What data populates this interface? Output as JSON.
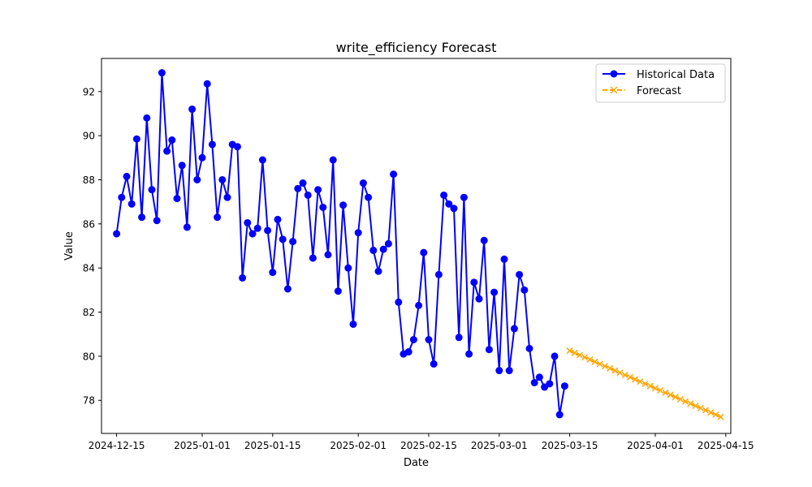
{
  "chart_data": {
    "type": "line",
    "title": "write_efficiency Forecast",
    "xlabel": "Date",
    "ylabel": "Value",
    "xlim": [
      "2024-12-12",
      "2025-04-16"
    ],
    "ylim": [
      76.5,
      93.5
    ],
    "x_ticks": [
      "2024-12-15",
      "2025-01-01",
      "2025-01-15",
      "2025-02-01",
      "2025-02-15",
      "2025-03-01",
      "2025-03-15",
      "2025-04-01",
      "2025-04-15"
    ],
    "y_ticks": [
      78,
      80,
      82,
      84,
      86,
      88,
      90,
      92
    ],
    "legend_position": "top-right",
    "grid": false,
    "series": [
      {
        "name": "Historical Data",
        "color": "#0000ff",
        "style": "solid",
        "marker": "circle",
        "start_date": "2024-12-15",
        "step_days": 1,
        "values": [
          85.55,
          87.2,
          88.15,
          86.9,
          89.85,
          86.3,
          90.8,
          87.55,
          86.15,
          92.85,
          89.3,
          89.8,
          87.15,
          88.65,
          85.85,
          91.2,
          88.0,
          89.0,
          92.35,
          89.6,
          86.3,
          88.0,
          87.2,
          89.6,
          89.5,
          83.55,
          86.05,
          85.55,
          85.8,
          88.9,
          85.7,
          83.8,
          86.2,
          85.3,
          83.05,
          85.2,
          87.6,
          87.85,
          87.3,
          84.45,
          87.55,
          86.75,
          84.6,
          88.9,
          82.95,
          86.85,
          84.0,
          81.45,
          85.6,
          87.85,
          87.2,
          84.8,
          83.85,
          84.85,
          85.1,
          88.25,
          82.45,
          80.1,
          80.2,
          80.75,
          82.3,
          84.7,
          80.75,
          79.65,
          83.7,
          87.3,
          86.9,
          86.7,
          80.85,
          87.2,
          80.1,
          83.35,
          82.6,
          85.25,
          80.3,
          82.9,
          79.35,
          84.4,
          79.35,
          81.25,
          83.7,
          83.0,
          80.35,
          78.8,
          79.05,
          78.6,
          78.75,
          80.0,
          77.35,
          78.65
        ]
      },
      {
        "name": "Forecast",
        "color": "#ffa500",
        "style": "dashed",
        "marker": "x",
        "start_date": "2025-03-15",
        "step_days": 1,
        "values": [
          80.25,
          80.15,
          80.05,
          79.95,
          79.85,
          79.75,
          79.65,
          79.55,
          79.45,
          79.35,
          79.25,
          79.15,
          79.05,
          78.95,
          78.85,
          78.75,
          78.65,
          78.55,
          78.45,
          78.35,
          78.25,
          78.15,
          78.05,
          77.95,
          77.85,
          77.75,
          77.65,
          77.55,
          77.45,
          77.35,
          77.25
        ]
      }
    ]
  }
}
